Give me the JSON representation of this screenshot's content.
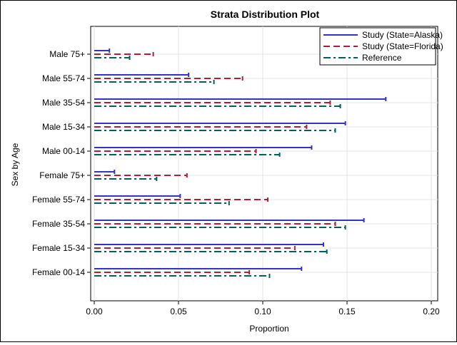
{
  "chart_data": {
    "type": "bar",
    "orientation": "horizontal",
    "title": "Strata Distribution Plot",
    "xlabel": "Proportion",
    "ylabel": "Sex by Age",
    "xlim": [
      0,
      0.21
    ],
    "xticks": [
      0.0,
      0.05,
      0.1,
      0.15,
      0.2
    ],
    "xtick_labels": [
      "0.00",
      "0.05",
      "0.10",
      "0.15",
      "0.20"
    ],
    "grid": true,
    "legend_position": "top-right",
    "categories": [
      "Male 75+",
      "Male 55-74",
      "Male 35-54",
      "Male 15-34",
      "Male 00-14",
      "Female 75+",
      "Female 55-74",
      "Female 35-54",
      "Female 15-34",
      "Female 00-14"
    ],
    "series": [
      {
        "name": "Study (State=Alaska)",
        "color": "#3333cc",
        "dash": "solid",
        "values": [
          0.009,
          0.056,
          0.173,
          0.149,
          0.129,
          0.012,
          0.051,
          0.16,
          0.136,
          0.123
        ]
      },
      {
        "name": "Study (State=Florida)",
        "color": "#aa2233",
        "dash": "dashed",
        "values": [
          0.035,
          0.088,
          0.14,
          0.126,
          0.096,
          0.055,
          0.103,
          0.143,
          0.119,
          0.092
        ]
      },
      {
        "name": "Reference",
        "color": "#006060",
        "dash": "dash-dot",
        "values": [
          0.021,
          0.071,
          0.146,
          0.143,
          0.11,
          0.037,
          0.08,
          0.149,
          0.138,
          0.104
        ]
      }
    ]
  }
}
